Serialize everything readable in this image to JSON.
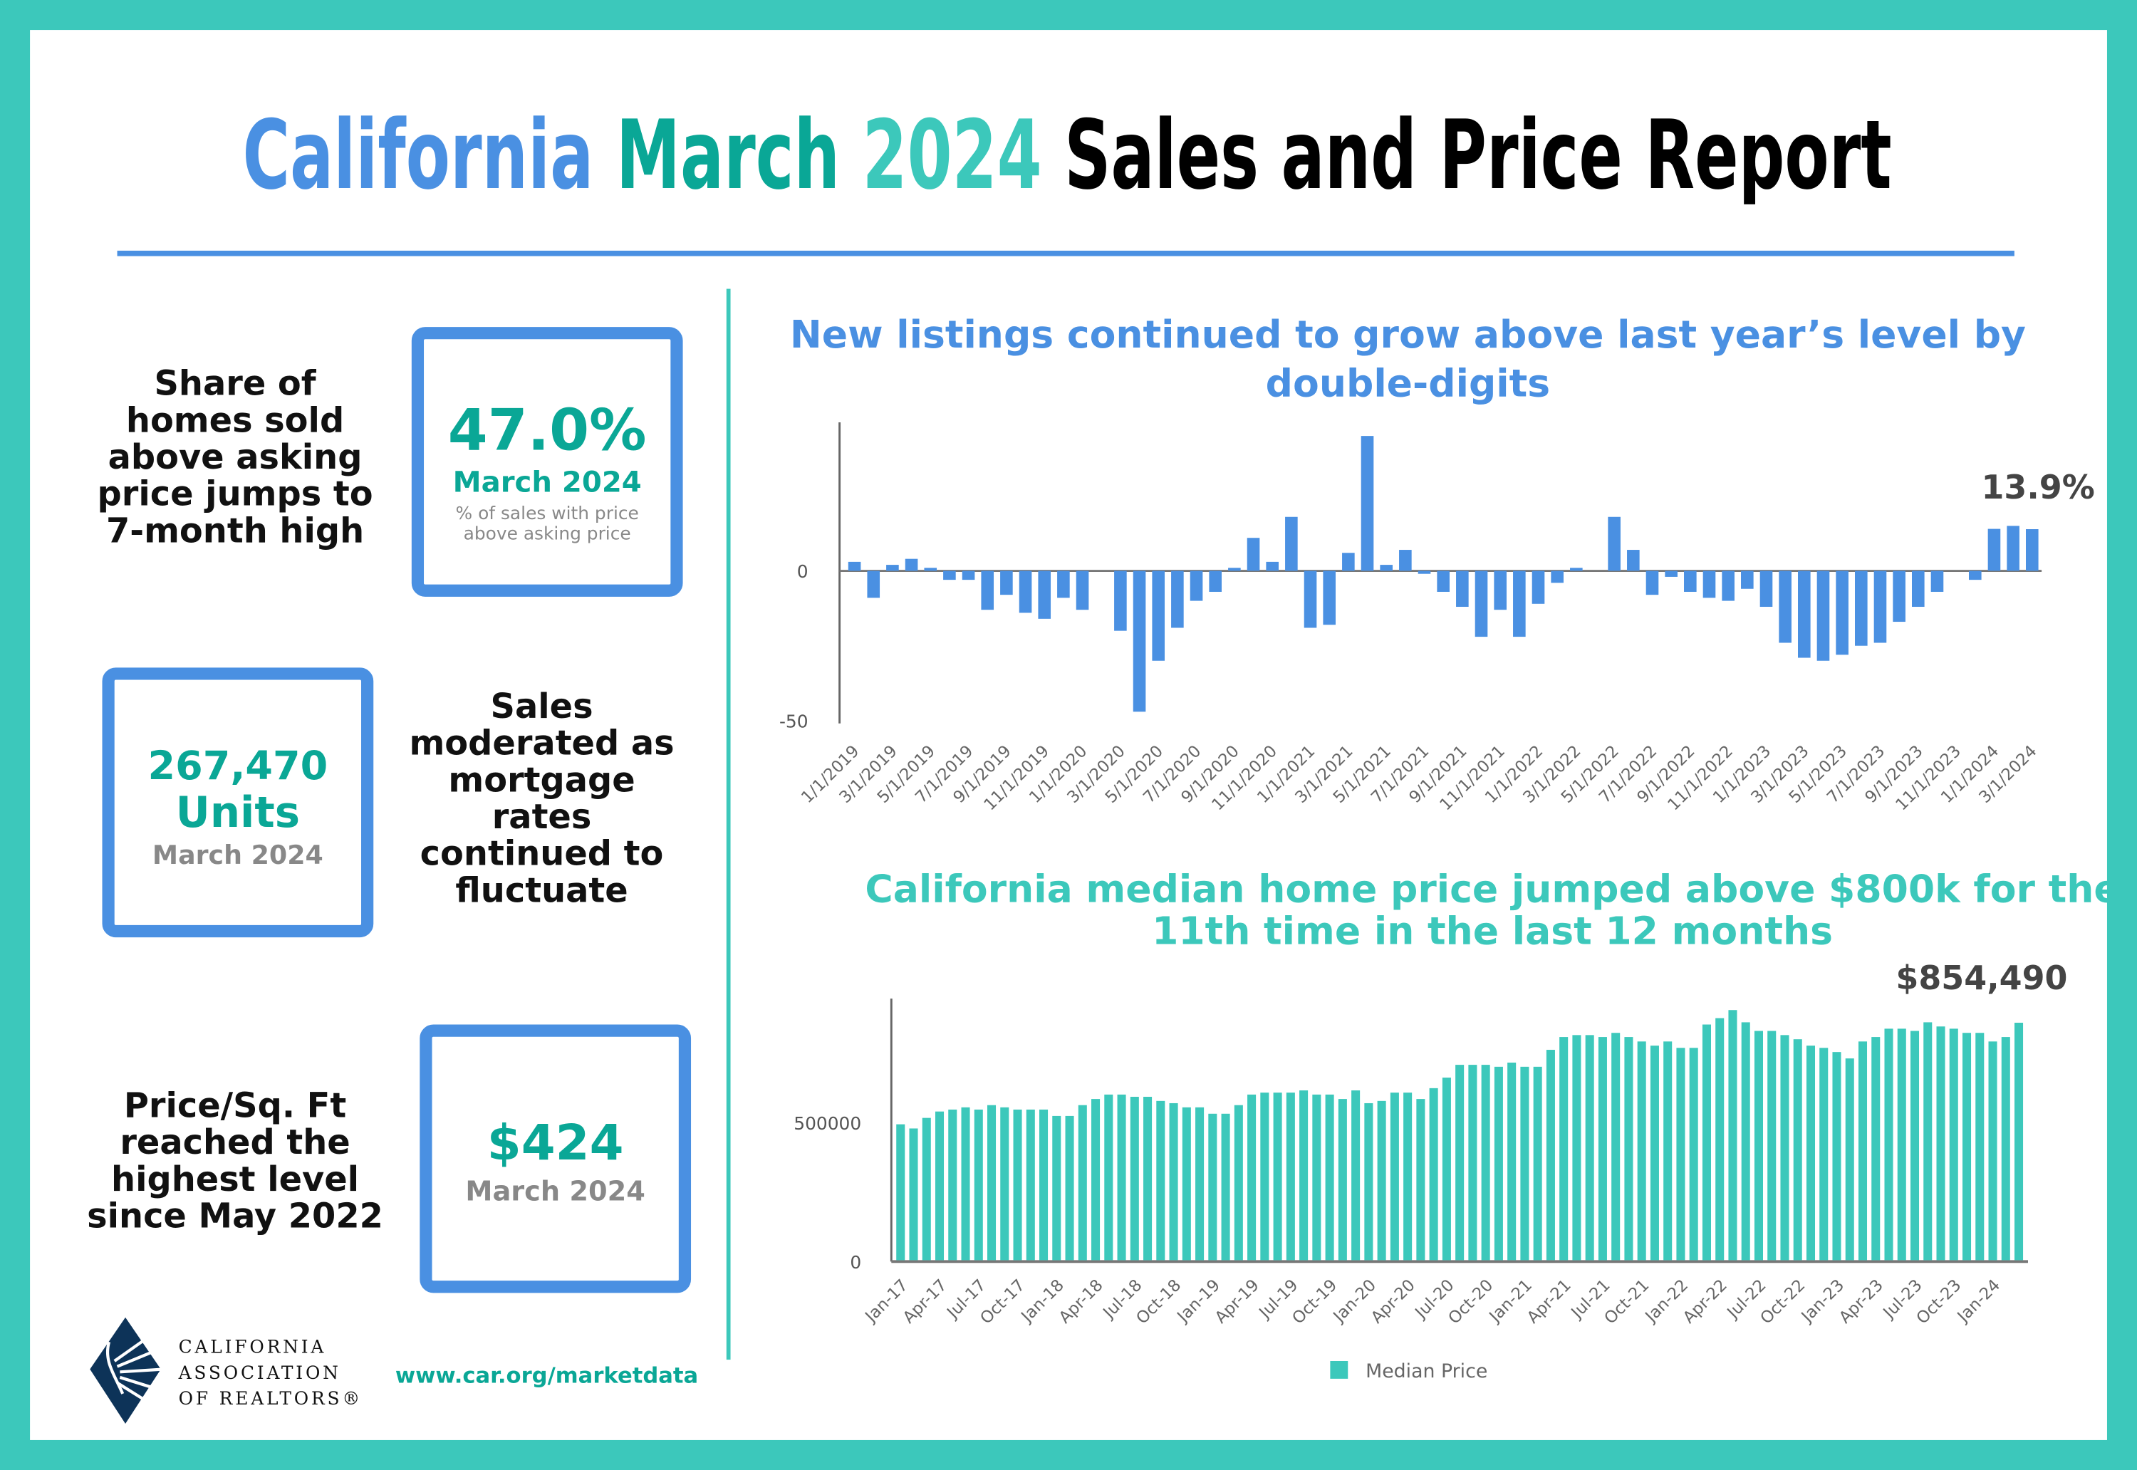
{
  "header": {
    "title_part1": "California",
    "title_part2": "March",
    "title_part3": "2024",
    "title_part4": "Sales and Price Report"
  },
  "colors": {
    "blue": "#4a90e2",
    "teal": "#3cc8bb",
    "dark_teal": "#0aa796",
    "text_dark": "#444444"
  },
  "left": {
    "card1": {
      "caption": [
        "Share of",
        "homes sold",
        "above asking",
        "price jumps to",
        "7-month high"
      ],
      "value": "47.0%",
      "period": "March 2024",
      "note": [
        "% of sales with price",
        "above asking price"
      ]
    },
    "card2": {
      "caption": [
        "Sales",
        "moderated as",
        "mortgage",
        "rates",
        "continued to",
        "fluctuate"
      ],
      "value": "267,470",
      "unit": "Units",
      "period": "March 2024"
    },
    "card3": {
      "caption": [
        "Price/Sq. Ft",
        "reached the",
        "highest level",
        "since May 2022"
      ],
      "value": "$424",
      "period": "March 2024"
    }
  },
  "footer": {
    "logo_text": [
      "CALIFORNIA",
      "ASSOCIATION",
      "OF REALTORS®"
    ],
    "url": "www.car.org/marketdata"
  },
  "chart_data": [
    {
      "type": "bar",
      "title": "New listings continued to grow above last year’s level by double-digits",
      "annotation": "13.9%",
      "ylim": [
        -50,
        50
      ],
      "yticks": [
        "0",
        "-50"
      ],
      "grid": false,
      "xtick_labels": [
        "1/1/2019",
        "3/1/2019",
        "5/1/2019",
        "7/1/2019",
        "9/1/2019",
        "11/1/2019",
        "1/1/2020",
        "3/1/2020",
        "5/1/2020",
        "7/1/2020",
        "9/1/2020",
        "11/1/2020",
        "1/1/2021",
        "3/1/2021",
        "5/1/2021",
        "7/1/2021",
        "9/1/2021",
        "11/1/2021",
        "1/1/2022",
        "3/1/2022",
        "5/1/2022",
        "7/1/2022",
        "9/1/2022",
        "11/1/2022",
        "1/1/2023",
        "3/1/2023",
        "5/1/2023",
        "7/1/2023",
        "9/1/2023",
        "11/1/2023",
        "1/1/2024",
        "3/1/2024"
      ],
      "values": [
        3,
        -9,
        2,
        4,
        1,
        -3,
        -3,
        -13,
        -8,
        -14,
        -16,
        -9,
        -13,
        0,
        -20,
        -47,
        -30,
        -19,
        -10,
        -7,
        1,
        11,
        3,
        18,
        -19,
        -18,
        6,
        45,
        2,
        7,
        -1,
        -7,
        -12,
        -22,
        -13,
        -22,
        -11,
        -4,
        1,
        0,
        18,
        7,
        -8,
        -2,
        -7,
        -9,
        -10,
        -6,
        -12,
        -24,
        -29,
        -30,
        -28,
        -25,
        -24,
        -17,
        -12,
        -7,
        0,
        -3,
        14,
        15,
        13.9
      ],
      "color": "#4a90e2"
    },
    {
      "type": "bar",
      "title": "California median home price jumped above $800k for the 11th time in the last 12 months",
      "annotation": "$854,490",
      "ylim": [
        0,
        950000
      ],
      "yticks": [
        "500000",
        "0"
      ],
      "grid": false,
      "legend": {
        "position": "bottom",
        "label": "Median Price"
      },
      "xtick_labels": [
        "Jan-17",
        "Apr-17",
        "Jul-17",
        "Oct-17",
        "Jan-18",
        "Apr-18",
        "Jul-18",
        "Oct-18",
        "Jan-19",
        "Apr-19",
        "Jul-19",
        "Oct-19",
        "Jan-20",
        "Apr-20",
        "Jul-20",
        "Oct-20",
        "Jan-21",
        "Apr-21",
        "Jul-21",
        "Oct-21",
        "Jan-22",
        "Apr-22",
        "Jul-22",
        "Oct-22",
        "Jan-23",
        "Apr-23",
        "Jul-23",
        "Oct-23",
        "Jan-24"
      ],
      "values": [
        489000,
        474000,
        512000,
        535000,
        542000,
        550000,
        542000,
        558000,
        550000,
        542000,
        542000,
        542000,
        519000,
        519000,
        558000,
        580000,
        596000,
        596000,
        588000,
        588000,
        573000,
        565000,
        550000,
        550000,
        527000,
        527000,
        558000,
        596000,
        603000,
        603000,
        603000,
        611000,
        596000,
        596000,
        580000,
        611000,
        565000,
        573000,
        603000,
        603000,
        580000,
        619000,
        657000,
        703000,
        703000,
        703000,
        696000,
        711000,
        696000,
        696000,
        757000,
        803000,
        810000,
        810000,
        803000,
        818000,
        803000,
        787000,
        772000,
        787000,
        764000,
        764000,
        848000,
        871000,
        900000,
        856000,
        825000,
        825000,
        810000,
        795000,
        772000,
        764000,
        749000,
        726000,
        787000,
        803000,
        833000,
        833000,
        825000,
        856000,
        841000,
        833000,
        818000,
        818000,
        787000,
        803000,
        854490
      ],
      "color": "#3cc8bb"
    }
  ]
}
